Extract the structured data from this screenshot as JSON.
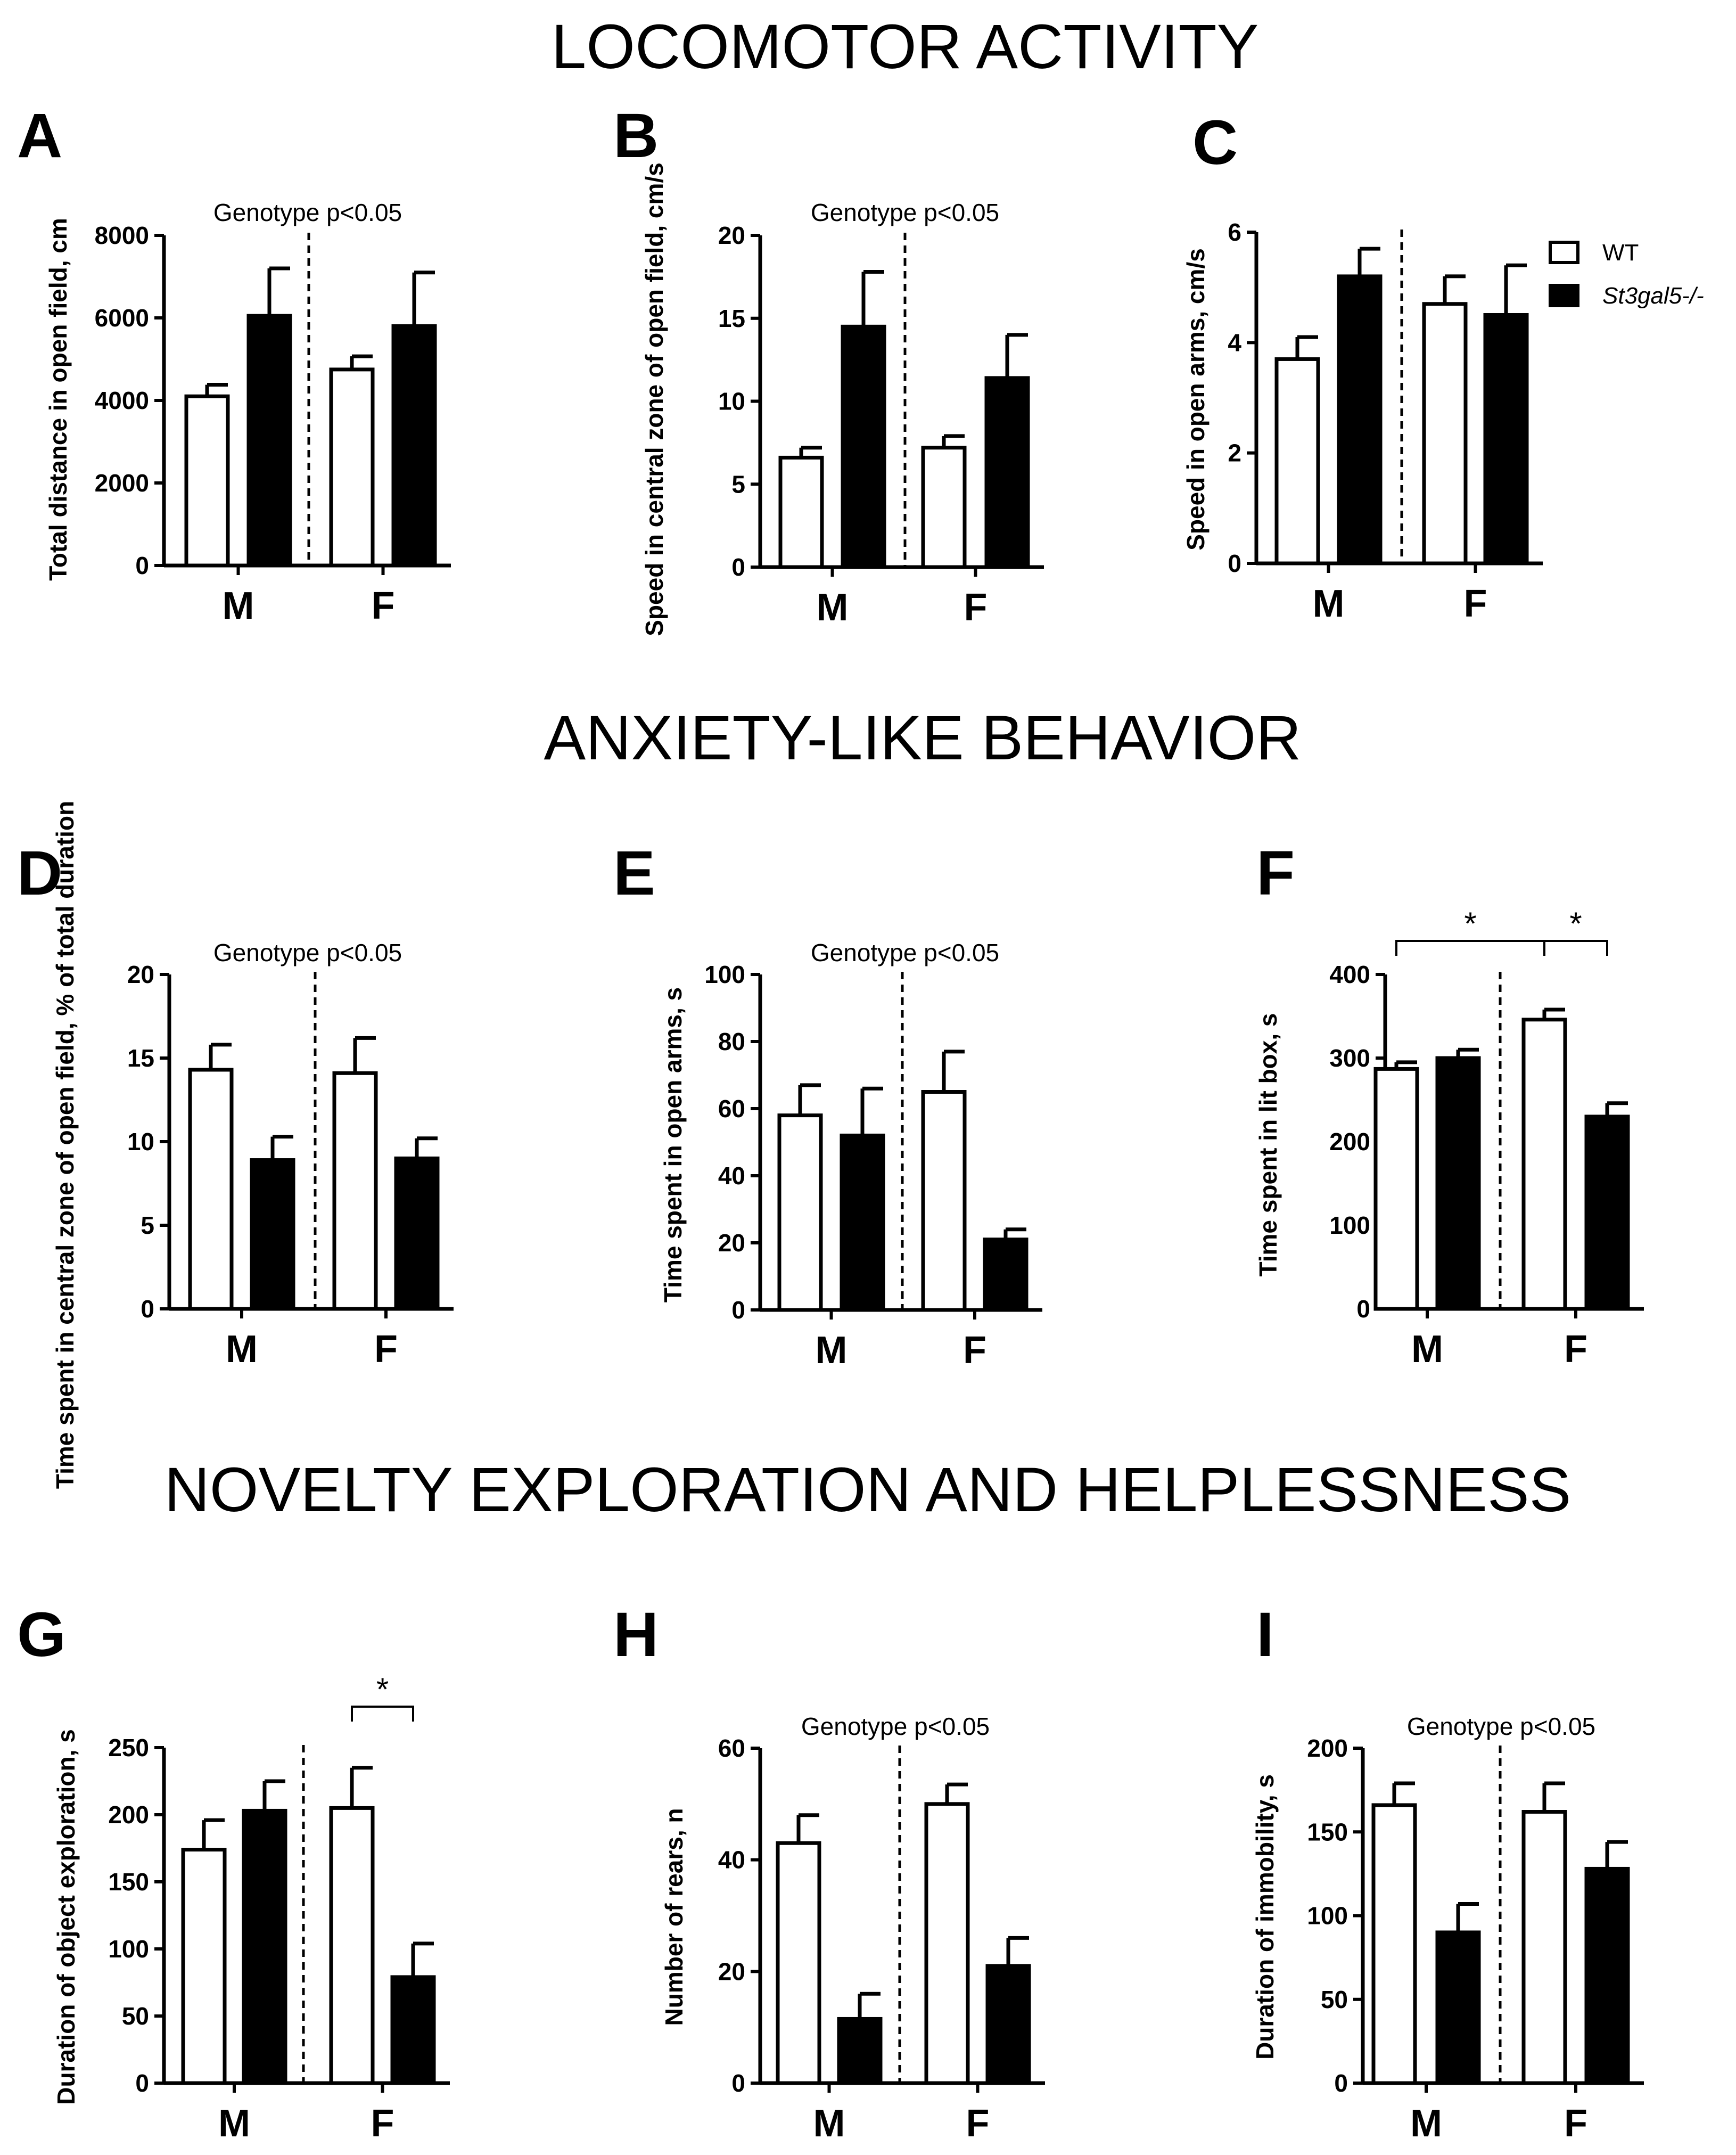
{
  "sections": [
    "LOCOMOTOR ACTIVITY",
    "ANXIETY-LIKE BEHAVIOR",
    "NOVELTY EXPLORATION  AND HELPLESSNESS"
  ],
  "legend": {
    "wt": "WT",
    "ko": "St3gal5-/-",
    "wt_color": "#ffffff",
    "ko_color": "#000000"
  },
  "colors": {
    "bar_wt": "#ffffff",
    "bar_ko": "#000000",
    "stroke": "#000000"
  },
  "chart_data": [
    {
      "id": "A",
      "type": "bar",
      "letter": "A",
      "ylabel": "Total distance in open field, cm",
      "ylim": [
        0,
        8000
      ],
      "yticks": [
        0,
        2000,
        4000,
        6000,
        8000
      ],
      "categories": [
        "M",
        "F"
      ],
      "series": [
        {
          "name": "WT",
          "values": [
            4100,
            4750
          ],
          "errors": [
            280,
            320
          ]
        },
        {
          "name": "St3gal5-/-",
          "values": [
            6050,
            5800
          ],
          "errors": [
            1150,
            1300
          ]
        }
      ],
      "annotation": "Genotype p<0.05"
    },
    {
      "id": "B",
      "type": "bar",
      "letter": "B",
      "ylabel": "Speed in central zone of open field, cm/s",
      "ylim": [
        0,
        20
      ],
      "yticks": [
        0,
        5,
        10,
        15,
        20
      ],
      "categories": [
        "M",
        "F"
      ],
      "series": [
        {
          "name": "WT",
          "values": [
            6.6,
            7.2
          ],
          "errors": [
            0.6,
            0.7
          ]
        },
        {
          "name": "St3gal5-/-",
          "values": [
            14.5,
            11.4
          ],
          "errors": [
            3.3,
            2.6
          ]
        }
      ],
      "annotation": "Genotype p<0.05"
    },
    {
      "id": "C",
      "type": "bar",
      "letter": "C",
      "ylabel": "Speed in open arms, cm/s",
      "ylim": [
        0,
        6
      ],
      "yticks": [
        0,
        2,
        4,
        6
      ],
      "categories": [
        "M",
        "F"
      ],
      "series": [
        {
          "name": "WT",
          "values": [
            3.7,
            4.7
          ],
          "errors": [
            0.4,
            0.5
          ]
        },
        {
          "name": "St3gal5-/-",
          "values": [
            5.2,
            4.5
          ],
          "errors": [
            0.5,
            0.9
          ]
        }
      ],
      "annotation": ""
    },
    {
      "id": "D",
      "type": "bar",
      "letter": "D",
      "ylabel": "Time spent in central zone of open field, % of total duration",
      "ylim": [
        0,
        20
      ],
      "yticks": [
        0,
        5,
        10,
        15,
        20
      ],
      "categories": [
        "M",
        "F"
      ],
      "series": [
        {
          "name": "WT",
          "values": [
            14.3,
            14.1
          ],
          "errors": [
            1.5,
            2.1
          ]
        },
        {
          "name": "St3gal5-/-",
          "values": [
            8.9,
            9.0
          ],
          "errors": [
            1.4,
            1.2
          ]
        }
      ],
      "annotation": "Genotype p<0.05"
    },
    {
      "id": "E",
      "type": "bar",
      "letter": "E",
      "ylabel": "Time spent in open arms, s",
      "ylim": [
        0,
        100
      ],
      "yticks": [
        0,
        20,
        40,
        60,
        80,
        100
      ],
      "categories": [
        "M",
        "F"
      ],
      "series": [
        {
          "name": "WT",
          "values": [
            58,
            65
          ],
          "errors": [
            9,
            12
          ]
        },
        {
          "name": "St3gal5-/-",
          "values": [
            52,
            21
          ],
          "errors": [
            14,
            3
          ]
        }
      ],
      "annotation": "Genotype p<0.05"
    },
    {
      "id": "F",
      "type": "bar",
      "letter": "F",
      "ylabel": "Time spent in lit box, s",
      "ylim": [
        0,
        400
      ],
      "yticks": [
        0,
        100,
        200,
        300,
        400
      ],
      "categories": [
        "M",
        "F"
      ],
      "series": [
        {
          "name": "WT",
          "values": [
            287,
            346
          ],
          "errors": [
            8,
            12
          ]
        },
        {
          "name": "St3gal5-/-",
          "values": [
            300,
            230
          ],
          "errors": [
            10,
            16
          ]
        }
      ],
      "annotation": "",
      "significance": [
        {
          "from": "M-WT",
          "to": "F-WT",
          "label": "*"
        },
        {
          "from": "F-WT",
          "to": "F-KO",
          "label": "*"
        }
      ]
    },
    {
      "id": "G",
      "type": "bar",
      "letter": "G",
      "ylabel": "Duration of object exploration, s",
      "ylim": [
        0,
        250
      ],
      "yticks": [
        0,
        50,
        100,
        150,
        200,
        250
      ],
      "categories": [
        "M",
        "F"
      ],
      "series": [
        {
          "name": "WT",
          "values": [
            174,
            205
          ],
          "errors": [
            22,
            30
          ]
        },
        {
          "name": "St3gal5-/-",
          "values": [
            203,
            79
          ],
          "errors": [
            22,
            25
          ]
        }
      ],
      "annotation": "",
      "significance": [
        {
          "from": "F-WT",
          "to": "F-KO",
          "label": "*"
        }
      ]
    },
    {
      "id": "H",
      "type": "bar",
      "letter": "H",
      "ylabel": "Number of rears, n",
      "ylim": [
        0,
        60
      ],
      "yticks": [
        0,
        20,
        40,
        60
      ],
      "categories": [
        "M",
        "F"
      ],
      "series": [
        {
          "name": "WT",
          "values": [
            43,
            50
          ],
          "errors": [
            5,
            3.5
          ]
        },
        {
          "name": "St3gal5-/-",
          "values": [
            11.5,
            21
          ],
          "errors": [
            4.5,
            5
          ]
        }
      ],
      "annotation": "Genotype p<0.05"
    },
    {
      "id": "I",
      "type": "bar",
      "letter": "I",
      "ylabel": "Duration of immobility, s",
      "ylim": [
        0,
        200
      ],
      "yticks": [
        0,
        50,
        100,
        150,
        200
      ],
      "categories": [
        "M",
        "F"
      ],
      "series": [
        {
          "name": "WT",
          "values": [
            166,
            162
          ],
          "errors": [
            13,
            17
          ]
        },
        {
          "name": "St3gal5-/-",
          "values": [
            90,
            128
          ],
          "errors": [
            17,
            16
          ]
        }
      ],
      "annotation": "Genotype p<0.05"
    }
  ]
}
